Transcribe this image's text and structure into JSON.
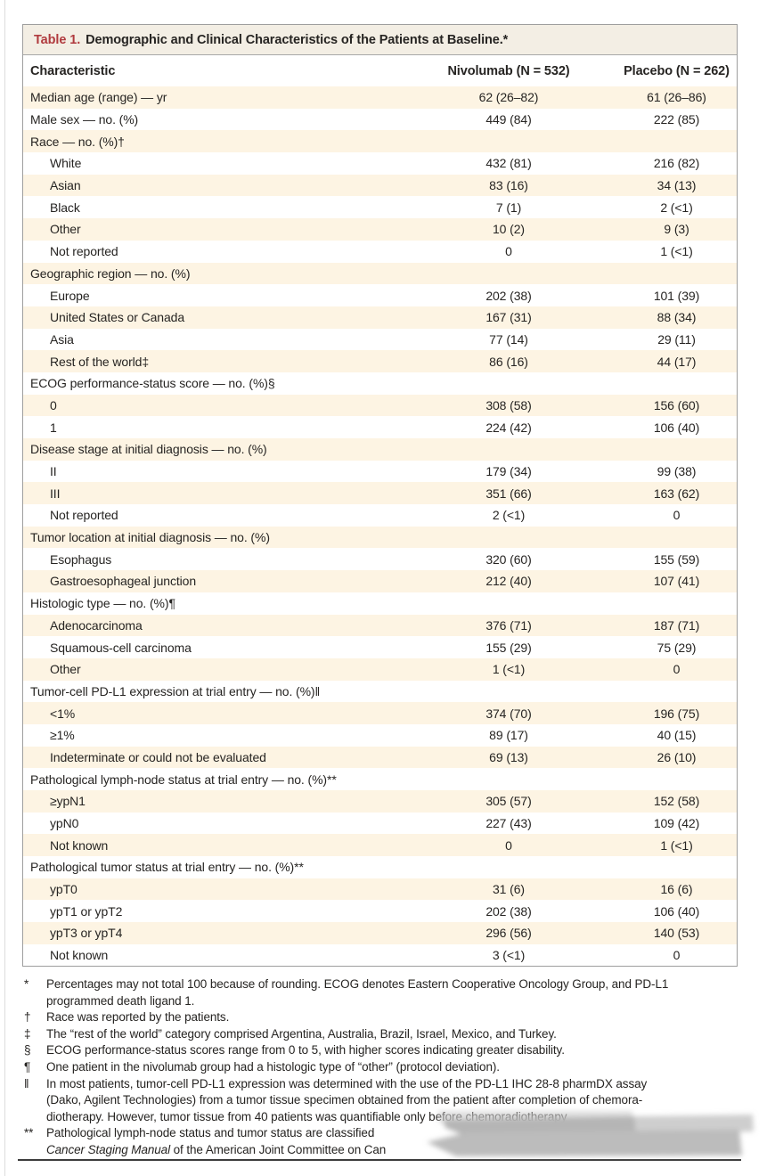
{
  "table": {
    "title_label": "Table 1.",
    "title_text": "Demographic and Clinical Characteristics of the Patients at Baseline.*",
    "columns": [
      "Characteristic",
      "Nivolumab (N = 532)",
      "Placebo (N = 262)"
    ],
    "rows": [
      {
        "indent": 0,
        "label": "Median age (range) — yr",
        "nivolumab": "62 (26–82)",
        "placebo": "61 (26–86)"
      },
      {
        "indent": 0,
        "label": "Male sex — no. (%)",
        "nivolumab": "449 (84)",
        "placebo": "222 (85)"
      },
      {
        "indent": 0,
        "label": "Race — no. (%)†",
        "nivolumab": "",
        "placebo": ""
      },
      {
        "indent": 1,
        "label": "White",
        "nivolumab": "432 (81)",
        "placebo": "216 (82)"
      },
      {
        "indent": 1,
        "label": "Asian",
        "nivolumab": "83 (16)",
        "placebo": "34 (13)"
      },
      {
        "indent": 1,
        "label": "Black",
        "nivolumab": "7 (1)",
        "placebo": "2 (<1)"
      },
      {
        "indent": 1,
        "label": "Other",
        "nivolumab": "10 (2)",
        "placebo": "9 (3)"
      },
      {
        "indent": 1,
        "label": "Not reported",
        "nivolumab": "0",
        "placebo": "1 (<1)"
      },
      {
        "indent": 0,
        "label": "Geographic region — no. (%)",
        "nivolumab": "",
        "placebo": ""
      },
      {
        "indent": 1,
        "label": "Europe",
        "nivolumab": "202 (38)",
        "placebo": "101 (39)"
      },
      {
        "indent": 1,
        "label": "United States or Canada",
        "nivolumab": "167 (31)",
        "placebo": "88 (34)"
      },
      {
        "indent": 1,
        "label": "Asia",
        "nivolumab": "77 (14)",
        "placebo": "29 (11)"
      },
      {
        "indent": 1,
        "label": "Rest of the world‡",
        "nivolumab": "86 (16)",
        "placebo": "44 (17)"
      },
      {
        "indent": 0,
        "label": "ECOG performance-status score — no. (%)§",
        "nivolumab": "",
        "placebo": ""
      },
      {
        "indent": 1,
        "label": "0",
        "nivolumab": "308 (58)",
        "placebo": "156 (60)"
      },
      {
        "indent": 1,
        "label": "1",
        "nivolumab": "224 (42)",
        "placebo": "106 (40)"
      },
      {
        "indent": 0,
        "label": "Disease stage at initial diagnosis — no. (%)",
        "nivolumab": "",
        "placebo": ""
      },
      {
        "indent": 1,
        "label": "II",
        "nivolumab": "179 (34)",
        "placebo": "99 (38)"
      },
      {
        "indent": 1,
        "label": "III",
        "nivolumab": "351 (66)",
        "placebo": "163 (62)"
      },
      {
        "indent": 1,
        "label": "Not reported",
        "nivolumab": "2 (<1)",
        "placebo": "0"
      },
      {
        "indent": 0,
        "label": "Tumor location at initial diagnosis — no. (%)",
        "nivolumab": "",
        "placebo": ""
      },
      {
        "indent": 1,
        "label": "Esophagus",
        "nivolumab": "320 (60)",
        "placebo": "155 (59)"
      },
      {
        "indent": 1,
        "label": "Gastroesophageal junction",
        "nivolumab": "212 (40)",
        "placebo": "107 (41)"
      },
      {
        "indent": 0,
        "label": "Histologic type — no. (%)¶",
        "nivolumab": "",
        "placebo": ""
      },
      {
        "indent": 1,
        "label": "Adenocarcinoma",
        "nivolumab": "376 (71)",
        "placebo": "187 (71)"
      },
      {
        "indent": 1,
        "label": "Squamous-cell carcinoma",
        "nivolumab": "155 (29)",
        "placebo": "75 (29)"
      },
      {
        "indent": 1,
        "label": "Other",
        "nivolumab": "1 (<1)",
        "placebo": "0"
      },
      {
        "indent": 0,
        "label": "Tumor-cell PD-L1 expression at trial entry — no. (%)‖",
        "nivolumab": "",
        "placebo": ""
      },
      {
        "indent": 1,
        "label": "<1%",
        "nivolumab": "374 (70)",
        "placebo": "196 (75)"
      },
      {
        "indent": 1,
        "label": "≥1%",
        "nivolumab": "89 (17)",
        "placebo": "40 (15)"
      },
      {
        "indent": 1,
        "label": "Indeterminate or could not be evaluated",
        "nivolumab": "69 (13)",
        "placebo": "26 (10)"
      },
      {
        "indent": 0,
        "label": "Pathological lymph-node status at trial entry — no. (%)**",
        "nivolumab": "",
        "placebo": ""
      },
      {
        "indent": 1,
        "label": "≥ypN1",
        "nivolumab": "305 (57)",
        "placebo": "152 (58)"
      },
      {
        "indent": 1,
        "label": "ypN0",
        "nivolumab": "227 (43)",
        "placebo": "109 (42)"
      },
      {
        "indent": 1,
        "label": "Not known",
        "nivolumab": "0",
        "placebo": "1 (<1)"
      },
      {
        "indent": 0,
        "label": "Pathological tumor status at trial entry — no. (%)**",
        "nivolumab": "",
        "placebo": ""
      },
      {
        "indent": 1,
        "label": "ypT0",
        "nivolumab": "31 (6)",
        "placebo": "16 (6)"
      },
      {
        "indent": 1,
        "label": "ypT1 or ypT2",
        "nivolumab": "202 (38)",
        "placebo": "106 (40)"
      },
      {
        "indent": 1,
        "label": "ypT3 or ypT4",
        "nivolumab": "296 (56)",
        "placebo": "140 (53)"
      },
      {
        "indent": 1,
        "label": "Not known",
        "nivolumab": "3 (<1)",
        "placebo": "0"
      }
    ]
  },
  "footnotes": [
    {
      "marker": "*",
      "lines": [
        [
          {
            "t": "Percentages may not total 100 because of rounding. ECOG denotes Eastern Cooperative Oncology Group, and PD-L1",
            "i": false
          }
        ],
        [
          {
            "t": "programmed death ligand 1.",
            "i": false
          }
        ]
      ]
    },
    {
      "marker": "†",
      "lines": [
        [
          {
            "t": "Race was reported by the patients.",
            "i": false
          }
        ]
      ]
    },
    {
      "marker": "‡",
      "lines": [
        [
          {
            "t": "The “rest of the world” category comprised Argentina, Australia, Brazil, Israel, Mexico, and Turkey.",
            "i": false
          }
        ]
      ]
    },
    {
      "marker": "§",
      "lines": [
        [
          {
            "t": "ECOG performance-status scores range from 0 to 5, with higher scores indicating greater disability.",
            "i": false
          }
        ]
      ]
    },
    {
      "marker": "¶",
      "lines": [
        [
          {
            "t": "One patient in the nivolumab group had a histologic type of “other” (protocol deviation).",
            "i": false
          }
        ]
      ]
    },
    {
      "marker": "‖",
      "lines": [
        [
          {
            "t": "In most patients, tumor-cell PD-L1 expression was determined with the use of the PD-L1 IHC 28-8 pharmDX assay",
            "i": false
          }
        ],
        [
          {
            "t": "(Dako, Agilent Technologies) from a tumor tissue specimen obtained from the patient after completion of chemora-",
            "i": false
          }
        ],
        [
          {
            "t": "diotherapy. However, tumor tissue from 40 patients was quantifiable only before chemoradiotherapy",
            "i": false
          }
        ]
      ]
    },
    {
      "marker": "**",
      "lines": [
        [
          {
            "t": "Pathological lymph-node status and tumor status are classified",
            "i": false
          }
        ],
        [
          {
            "t": "Cancer Staging Manual",
            "i": true
          },
          {
            "t": " of the American Joint Committee on Can",
            "i": false
          }
        ]
      ]
    }
  ],
  "colors": {
    "accent_red": "#b03a3e",
    "row_cream": "#fdf4e3",
    "title_bg": "#f3eee4",
    "table_border": "#9e9e9e",
    "text": "#262422",
    "smudge_gray": "#b5b5b5"
  }
}
